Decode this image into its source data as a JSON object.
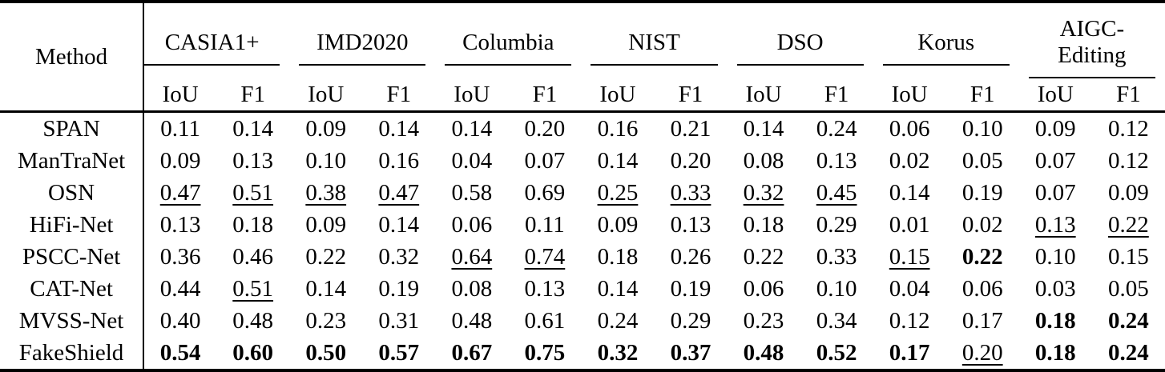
{
  "table": {
    "title_col": "Method",
    "metric_headers": [
      "IoU",
      "F1"
    ],
    "groups": [
      "CASIA1+",
      "IMD2020",
      "Columbia",
      "NIST",
      "DSO",
      "Korus",
      "AIGC-Editing"
    ],
    "rows": [
      {
        "method": "SPAN",
        "cells": [
          {
            "v": "0.11"
          },
          {
            "v": "0.14"
          },
          {
            "v": "0.09"
          },
          {
            "v": "0.14"
          },
          {
            "v": "0.14"
          },
          {
            "v": "0.20"
          },
          {
            "v": "0.16"
          },
          {
            "v": "0.21"
          },
          {
            "v": "0.14"
          },
          {
            "v": "0.24"
          },
          {
            "v": "0.06"
          },
          {
            "v": "0.10"
          },
          {
            "v": "0.09"
          },
          {
            "v": "0.12"
          }
        ]
      },
      {
        "method": "ManTraNet",
        "cells": [
          {
            "v": "0.09"
          },
          {
            "v": "0.13"
          },
          {
            "v": "0.10"
          },
          {
            "v": "0.16"
          },
          {
            "v": "0.04"
          },
          {
            "v": "0.07"
          },
          {
            "v": "0.14"
          },
          {
            "v": "0.20"
          },
          {
            "v": "0.08"
          },
          {
            "v": "0.13"
          },
          {
            "v": "0.02"
          },
          {
            "v": "0.05"
          },
          {
            "v": "0.07"
          },
          {
            "v": "0.12"
          }
        ]
      },
      {
        "method": "OSN",
        "cells": [
          {
            "v": "0.47",
            "style": "underline"
          },
          {
            "v": "0.51",
            "style": "underline"
          },
          {
            "v": "0.38",
            "style": "underline"
          },
          {
            "v": "0.47",
            "style": "underline"
          },
          {
            "v": "0.58"
          },
          {
            "v": "0.69"
          },
          {
            "v": "0.25",
            "style": "underline"
          },
          {
            "v": "0.33",
            "style": "underline"
          },
          {
            "v": "0.32",
            "style": "underline"
          },
          {
            "v": "0.45",
            "style": "underline"
          },
          {
            "v": "0.14"
          },
          {
            "v": "0.19"
          },
          {
            "v": "0.07"
          },
          {
            "v": "0.09"
          }
        ]
      },
      {
        "method": "HiFi-Net",
        "cells": [
          {
            "v": "0.13"
          },
          {
            "v": "0.18"
          },
          {
            "v": "0.09"
          },
          {
            "v": "0.14"
          },
          {
            "v": "0.06"
          },
          {
            "v": "0.11"
          },
          {
            "v": "0.09"
          },
          {
            "v": "0.13"
          },
          {
            "v": "0.18"
          },
          {
            "v": "0.29"
          },
          {
            "v": "0.01"
          },
          {
            "v": "0.02"
          },
          {
            "v": "0.13",
            "style": "underline"
          },
          {
            "v": "0.22",
            "style": "underline"
          }
        ]
      },
      {
        "method": "PSCC-Net",
        "cells": [
          {
            "v": "0.36"
          },
          {
            "v": "0.46"
          },
          {
            "v": "0.22"
          },
          {
            "v": "0.32"
          },
          {
            "v": "0.64",
            "style": "underline"
          },
          {
            "v": "0.74",
            "style": "underline"
          },
          {
            "v": "0.18"
          },
          {
            "v": "0.26"
          },
          {
            "v": "0.22"
          },
          {
            "v": "0.33"
          },
          {
            "v": "0.15",
            "style": "underline"
          },
          {
            "v": "0.22",
            "style": "bold"
          },
          {
            "v": "0.10"
          },
          {
            "v": "0.15"
          }
        ]
      },
      {
        "method": "CAT-Net",
        "cells": [
          {
            "v": "0.44"
          },
          {
            "v": "0.51",
            "style": "underline"
          },
          {
            "v": "0.14"
          },
          {
            "v": "0.19"
          },
          {
            "v": "0.08"
          },
          {
            "v": "0.13"
          },
          {
            "v": "0.14"
          },
          {
            "v": "0.19"
          },
          {
            "v": "0.06"
          },
          {
            "v": "0.10"
          },
          {
            "v": "0.04"
          },
          {
            "v": "0.06"
          },
          {
            "v": "0.03"
          },
          {
            "v": "0.05"
          }
        ]
      },
      {
        "method": "MVSS-Net",
        "cells": [
          {
            "v": "0.40"
          },
          {
            "v": "0.48"
          },
          {
            "v": "0.23"
          },
          {
            "v": "0.31"
          },
          {
            "v": "0.48"
          },
          {
            "v": "0.61"
          },
          {
            "v": "0.24"
          },
          {
            "v": "0.29"
          },
          {
            "v": "0.23"
          },
          {
            "v": "0.34"
          },
          {
            "v": "0.12"
          },
          {
            "v": "0.17"
          },
          {
            "v": "0.18",
            "style": "bold"
          },
          {
            "v": "0.24",
            "style": "bold"
          }
        ]
      },
      {
        "method": "FakeShield",
        "cells": [
          {
            "v": "0.54",
            "style": "bold"
          },
          {
            "v": "0.60",
            "style": "bold"
          },
          {
            "v": "0.50",
            "style": "bold"
          },
          {
            "v": "0.57",
            "style": "bold"
          },
          {
            "v": "0.67",
            "style": "bold"
          },
          {
            "v": "0.75",
            "style": "bold"
          },
          {
            "v": "0.32",
            "style": "bold"
          },
          {
            "v": "0.37",
            "style": "bold"
          },
          {
            "v": "0.48",
            "style": "bold"
          },
          {
            "v": "0.52",
            "style": "bold"
          },
          {
            "v": "0.17",
            "style": "bold"
          },
          {
            "v": "0.20",
            "style": "underline"
          },
          {
            "v": "0.18",
            "style": "bold"
          },
          {
            "v": "0.24",
            "style": "bold"
          }
        ]
      }
    ]
  }
}
